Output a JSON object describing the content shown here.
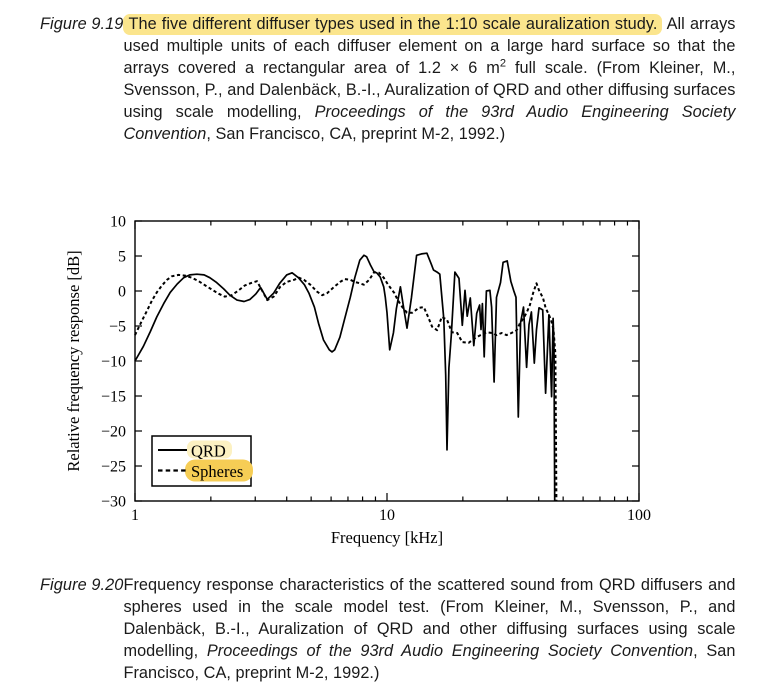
{
  "page": {
    "background": "#ffffff",
    "text_color": "#1a1a1a",
    "caption_highlight_color": "#fbe58d"
  },
  "figure_9_19": {
    "label": "Figure 9.19",
    "sentence_highlight": "The five different diffuser types used in the 1:10 scale auralization study.",
    "body1": " All arrays used multiple units of each diffuser element on a large hard surface so that the arrays covered a rectangular area of 1.2 × 6 m",
    "sup": "2",
    "body2": " full scale. (From Kleiner, M., Svensson, P., and Dalenbäck, B.-I., Auralization of QRD and other diffusing surfaces using scale modelling, ",
    "italic_ref": "Proceedings of the 93rd Audio Engineering Society Convention",
    "body3": ", San Francisco, CA, preprint M-2, 1992.)"
  },
  "figure_9_20": {
    "label": "Figure 9.20",
    "body1": "Frequency response characteristics of the scattered sound from QRD diffusers and spheres used in the scale model test. (From Kleiner, M., Svensson, P., and Dalenbäck, B.-I., Auralization of QRD and other diffusing surfaces using scale modelling, ",
    "italic_ref": "Proceedings of the 93rd Audio Engineering Society Convention",
    "body2": ", San Francisco, CA, preprint M-2, 1992.)"
  },
  "chart_data": {
    "type": "line",
    "title": "",
    "xlabel": "Frequency [kHz]",
    "ylabel": "Relative frequency response [dB]",
    "x_scale": "log",
    "xlim": [
      1,
      100
    ],
    "ylim": [
      -30,
      10
    ],
    "grid": false,
    "box": true,
    "line_color": "#000000",
    "xticks_major": [
      1,
      10,
      100
    ],
    "xticks_minor": [
      2,
      3,
      4,
      5,
      6,
      7,
      8,
      9,
      20,
      30,
      40,
      50,
      60,
      70,
      80,
      90
    ],
    "yticks": [
      10,
      5,
      0,
      -5,
      -10,
      -15,
      -20,
      -25,
      -30
    ],
    "legend_position": "bottom-left",
    "legend": {
      "items": [
        {
          "label": "QRD",
          "style": "solid",
          "highlight": "#fcf1c2"
        },
        {
          "label": "Spheres",
          "style": "dashed",
          "highlight": "#f6cd55"
        }
      ]
    },
    "series": [
      {
        "name": "QRD",
        "style": "solid",
        "points": [
          [
            1.0,
            -10
          ],
          [
            1.08,
            -7.9
          ],
          [
            1.15,
            -5.8
          ],
          [
            1.22,
            -3.7
          ],
          [
            1.3,
            -1.8
          ],
          [
            1.38,
            -0.2
          ],
          [
            1.47,
            1.0
          ],
          [
            1.56,
            1.9
          ],
          [
            1.65,
            2.3
          ],
          [
            1.76,
            2.4
          ],
          [
            1.88,
            2.3
          ],
          [
            1.98,
            1.9
          ],
          [
            2.11,
            1.2
          ],
          [
            2.25,
            0.3
          ],
          [
            2.38,
            -0.6
          ],
          [
            2.54,
            -1.3
          ],
          [
            2.71,
            -1.5
          ],
          [
            2.86,
            -1.2
          ],
          [
            3.02,
            -0.4
          ],
          [
            3.15,
            0.5
          ],
          [
            3.35,
            -1.2
          ],
          [
            3.55,
            -0.3
          ],
          [
            3.75,
            1.1
          ],
          [
            4.0,
            2.3
          ],
          [
            4.2,
            2.6
          ],
          [
            4.45,
            1.9
          ],
          [
            4.7,
            0.9
          ],
          [
            4.9,
            -0.3
          ],
          [
            5.15,
            -2.3
          ],
          [
            5.35,
            -4.6
          ],
          [
            5.6,
            -7.0
          ],
          [
            5.9,
            -8.4
          ],
          [
            6.05,
            -8.7
          ],
          [
            6.2,
            -8.4
          ],
          [
            6.5,
            -6.6
          ],
          [
            6.8,
            -3.9
          ],
          [
            7.15,
            -0.9
          ],
          [
            7.45,
            1.9
          ],
          [
            7.8,
            4.4
          ],
          [
            8.1,
            5.1
          ],
          [
            8.3,
            4.9
          ],
          [
            8.6,
            3.7
          ],
          [
            8.9,
            2.7
          ],
          [
            9.1,
            2.6
          ],
          [
            9.4,
            2.0
          ],
          [
            9.7,
            0.6
          ],
          [
            9.85,
            -0.9
          ],
          [
            10.0,
            -3.1
          ],
          [
            10.25,
            -8.4
          ],
          [
            10.6,
            -6.0
          ],
          [
            10.9,
            -2.5
          ],
          [
            11.3,
            0.6
          ],
          [
            11.6,
            -2.0
          ],
          [
            12.0,
            -5.3
          ],
          [
            12.5,
            -1.0
          ],
          [
            13.1,
            5.1
          ],
          [
            13.7,
            5.3
          ],
          [
            14.4,
            5.4
          ],
          [
            15.0,
            3.8
          ],
          [
            15.3,
            3.0
          ],
          [
            15.8,
            2.7
          ],
          [
            16.2,
            2.4
          ],
          [
            16.8,
            -4.0
          ],
          [
            17.1,
            -12.0
          ],
          [
            17.3,
            -22.7
          ],
          [
            17.6,
            -11.0
          ],
          [
            18.0,
            -6.3
          ],
          [
            18.6,
            2.7
          ],
          [
            19.3,
            1.8
          ],
          [
            19.9,
            -4.9
          ],
          [
            20.4,
            0.1
          ],
          [
            20.8,
            -3.6
          ],
          [
            21.4,
            -1.0
          ],
          [
            22.1,
            -7.8
          ],
          [
            22.7,
            -3.2
          ],
          [
            23.3,
            -2.0
          ],
          [
            23.6,
            -5.5
          ],
          [
            23.9,
            -1.8
          ],
          [
            24.3,
            -9.4
          ],
          [
            24.8,
            0.0
          ],
          [
            25.6,
            0.1
          ],
          [
            26.0,
            -2.3
          ],
          [
            26.6,
            -13.0
          ],
          [
            27.2,
            -0.9
          ],
          [
            28.2,
            1.2
          ],
          [
            28.9,
            4.1
          ],
          [
            30.0,
            4.3
          ],
          [
            31.0,
            1.4
          ],
          [
            31.8,
            0.1
          ],
          [
            32.5,
            -0.9
          ],
          [
            33.2,
            -18.0
          ],
          [
            33.9,
            -4.5
          ],
          [
            34.8,
            -2.3
          ],
          [
            35.8,
            -10.9
          ],
          [
            36.6,
            -4.8
          ],
          [
            37.4,
            -3.0
          ],
          [
            38.4,
            -10.3
          ],
          [
            39.2,
            -5.5
          ],
          [
            40.1,
            -2.4
          ],
          [
            41.5,
            -2.7
          ],
          [
            42.6,
            -14.6
          ],
          [
            43.9,
            -3.4
          ],
          [
            45.0,
            -15.1
          ],
          [
            45.6,
            -3.9
          ],
          [
            46.0,
            -8.0
          ],
          [
            46.3,
            -30
          ]
        ]
      },
      {
        "name": "Spheres",
        "style": "dashed",
        "points": [
          [
            1.0,
            -6.3
          ],
          [
            1.06,
            -4.4
          ],
          [
            1.12,
            -2.7
          ],
          [
            1.17,
            -1.3
          ],
          [
            1.22,
            -0.2
          ],
          [
            1.28,
            0.8
          ],
          [
            1.34,
            1.6
          ],
          [
            1.4,
            2.1
          ],
          [
            1.49,
            2.3
          ],
          [
            1.58,
            2.2
          ],
          [
            1.68,
            1.9
          ],
          [
            1.79,
            1.4
          ],
          [
            1.9,
            0.8
          ],
          [
            2.02,
            0.2
          ],
          [
            2.15,
            -0.4
          ],
          [
            2.27,
            -0.8
          ],
          [
            2.42,
            -0.6
          ],
          [
            2.58,
            0.1
          ],
          [
            2.73,
            0.8
          ],
          [
            2.92,
            1.2
          ],
          [
            3.05,
            1.4
          ],
          [
            3.35,
            -1.3
          ],
          [
            3.55,
            -0.8
          ],
          [
            3.77,
            0.6
          ],
          [
            4.0,
            1.3
          ],
          [
            4.28,
            1.6
          ],
          [
            4.47,
            1.9
          ],
          [
            4.68,
            1.6
          ],
          [
            4.96,
            0.9
          ],
          [
            5.28,
            -0.1
          ],
          [
            5.53,
            -0.6
          ],
          [
            5.79,
            -0.3
          ],
          [
            6.17,
            0.6
          ],
          [
            6.52,
            1.3
          ],
          [
            6.8,
            1.7
          ],
          [
            7.15,
            1.6
          ],
          [
            7.45,
            1.3
          ],
          [
            7.8,
            1.1
          ],
          [
            8.1,
            0.9
          ],
          [
            8.5,
            1.6
          ],
          [
            8.9,
            2.7
          ],
          [
            9.3,
            2.6
          ],
          [
            9.7,
            1.9
          ],
          [
            10.1,
            0.9
          ],
          [
            10.7,
            -0.3
          ],
          [
            11.0,
            -1.2
          ],
          [
            11.5,
            -2.3
          ],
          [
            12.0,
            -3.1
          ],
          [
            12.6,
            -3.1
          ],
          [
            13.4,
            -2.4
          ],
          [
            14.0,
            -2.3
          ],
          [
            14.6,
            -3.8
          ],
          [
            15.1,
            -5.1
          ],
          [
            15.8,
            -5.6
          ],
          [
            16.5,
            -3.7
          ],
          [
            17.3,
            -4.1
          ],
          [
            18.1,
            -5.9
          ],
          [
            19.0,
            -6.0
          ],
          [
            19.9,
            -7.3
          ],
          [
            21.1,
            -7.4
          ],
          [
            22.4,
            -6.7
          ],
          [
            23.5,
            -6.3
          ],
          [
            24.9,
            -5.9
          ],
          [
            26.1,
            -6.0
          ],
          [
            27.2,
            -6.3
          ],
          [
            28.5,
            -6.0
          ],
          [
            29.8,
            -6.3
          ],
          [
            31.2,
            -6.0
          ],
          [
            32.7,
            -5.6
          ],
          [
            33.7,
            -4.6
          ],
          [
            34.8,
            -3.9
          ],
          [
            35.8,
            -3.1
          ],
          [
            36.9,
            -2.0
          ],
          [
            38.0,
            -0.3
          ],
          [
            39.2,
            1.1
          ],
          [
            40.1,
            0.1
          ],
          [
            41.6,
            -1.0
          ],
          [
            42.6,
            -2.4
          ],
          [
            43.9,
            -3.4
          ],
          [
            44.7,
            -4.1
          ],
          [
            45.8,
            -5.5
          ],
          [
            46.6,
            -9.0
          ],
          [
            47.0,
            -30
          ]
        ]
      }
    ]
  }
}
